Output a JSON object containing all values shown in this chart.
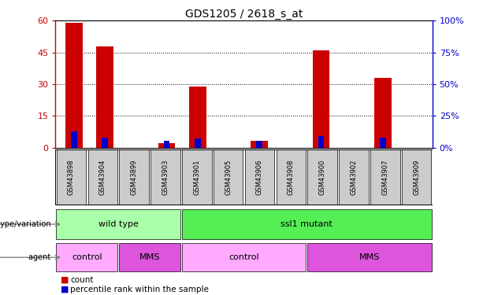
{
  "title": "GDS1205 / 2618_s_at",
  "samples": [
    "GSM43898",
    "GSM43904",
    "GSM43899",
    "GSM43903",
    "GSM43901",
    "GSM43905",
    "GSM43906",
    "GSM43908",
    "GSM43900",
    "GSM43902",
    "GSM43907",
    "GSM43909"
  ],
  "counts": [
    59,
    48,
    0,
    2,
    29,
    0,
    3,
    0,
    46,
    0,
    33,
    0
  ],
  "percentile": [
    13,
    8,
    0,
    5,
    7,
    0,
    5,
    0,
    9,
    0,
    8,
    0
  ],
  "ylim_left": [
    0,
    60
  ],
  "ylim_right": [
    0,
    100
  ],
  "yticks_left": [
    0,
    15,
    30,
    45,
    60
  ],
  "ytick_labels_left": [
    "0",
    "15",
    "30",
    "45",
    "60"
  ],
  "yticks_right": [
    0,
    25,
    50,
    75,
    100
  ],
  "ytick_labels_right": [
    "0%",
    "25%",
    "50%",
    "75%",
    "100%"
  ],
  "bar_color": "#cc0000",
  "pct_color": "#0000cc",
  "bg_color": "#ffffff",
  "genotype_groups": [
    {
      "label": "wild type",
      "start": 0,
      "end": 3,
      "color": "#aaffaa"
    },
    {
      "label": "ssl1 mutant",
      "start": 4,
      "end": 11,
      "color": "#55ee55"
    }
  ],
  "agent_groups": [
    {
      "label": "control",
      "start": 0,
      "end": 1,
      "color": "#ffaaff"
    },
    {
      "label": "MMS",
      "start": 2,
      "end": 3,
      "color": "#dd55dd"
    },
    {
      "label": "control",
      "start": 4,
      "end": 7,
      "color": "#ffaaff"
    },
    {
      "label": "MMS",
      "start": 8,
      "end": 11,
      "color": "#dd55dd"
    }
  ],
  "legend_count_label": "count",
  "legend_pct_label": "percentile rank within the sample",
  "genotype_label": "genotype/variation",
  "agent_label": "agent",
  "tick_bg_color": "#cccccc"
}
